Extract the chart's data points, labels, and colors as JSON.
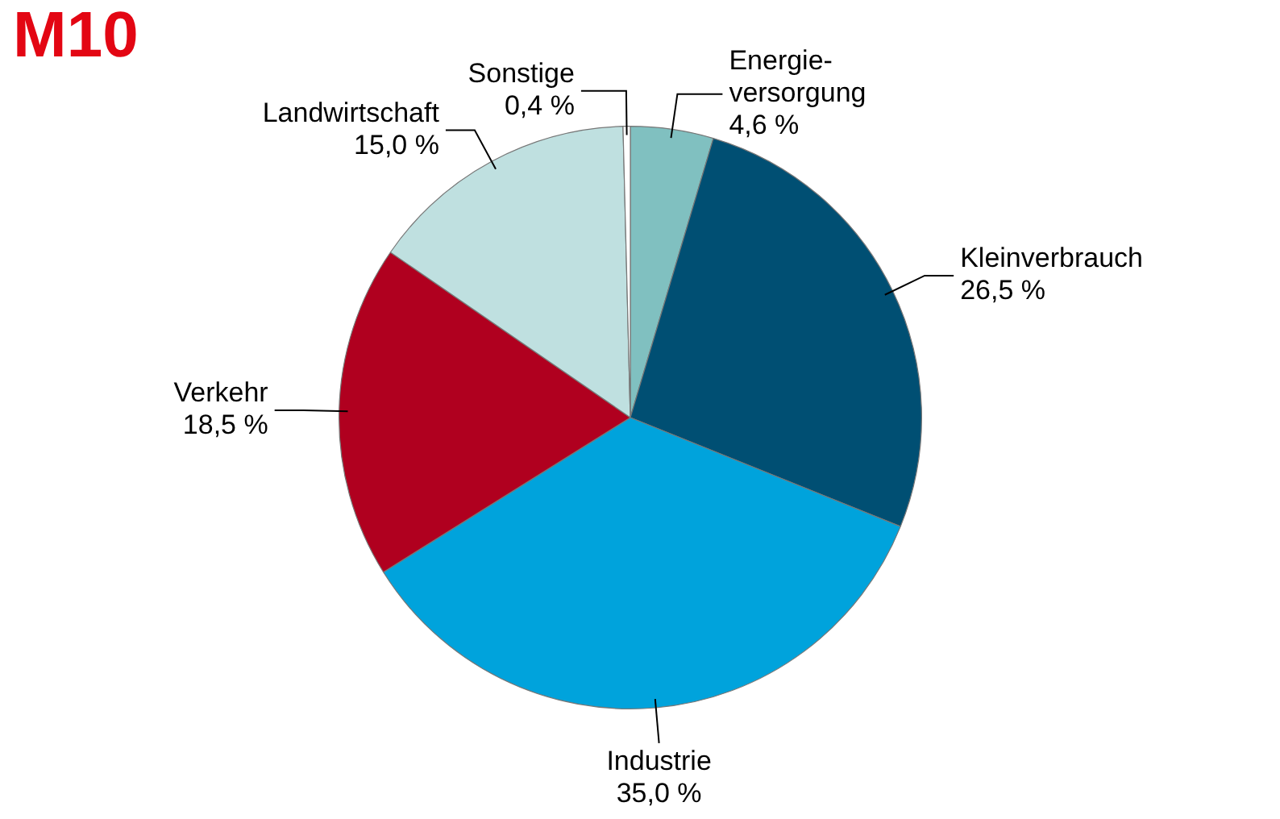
{
  "chart_data": {
    "type": "pie",
    "title": "M10",
    "categories": [
      "Energie-versorgung",
      "Kleinverbrauch",
      "Industrie",
      "Verkehr",
      "Landwirtschaft",
      "Sonstige"
    ],
    "values": [
      4.6,
      26.5,
      35.0,
      18.5,
      15.0,
      0.4
    ],
    "value_labels": [
      "4,6 %",
      "26,5 %",
      "35,0 %",
      "18,5 %",
      "15,0 %",
      "0,4 %"
    ],
    "colors": [
      "#80c0c0",
      "#004f73",
      "#00a3dc",
      "#b0001f",
      "#bfe0e0",
      "#ffffff"
    ],
    "legend": false
  }
}
